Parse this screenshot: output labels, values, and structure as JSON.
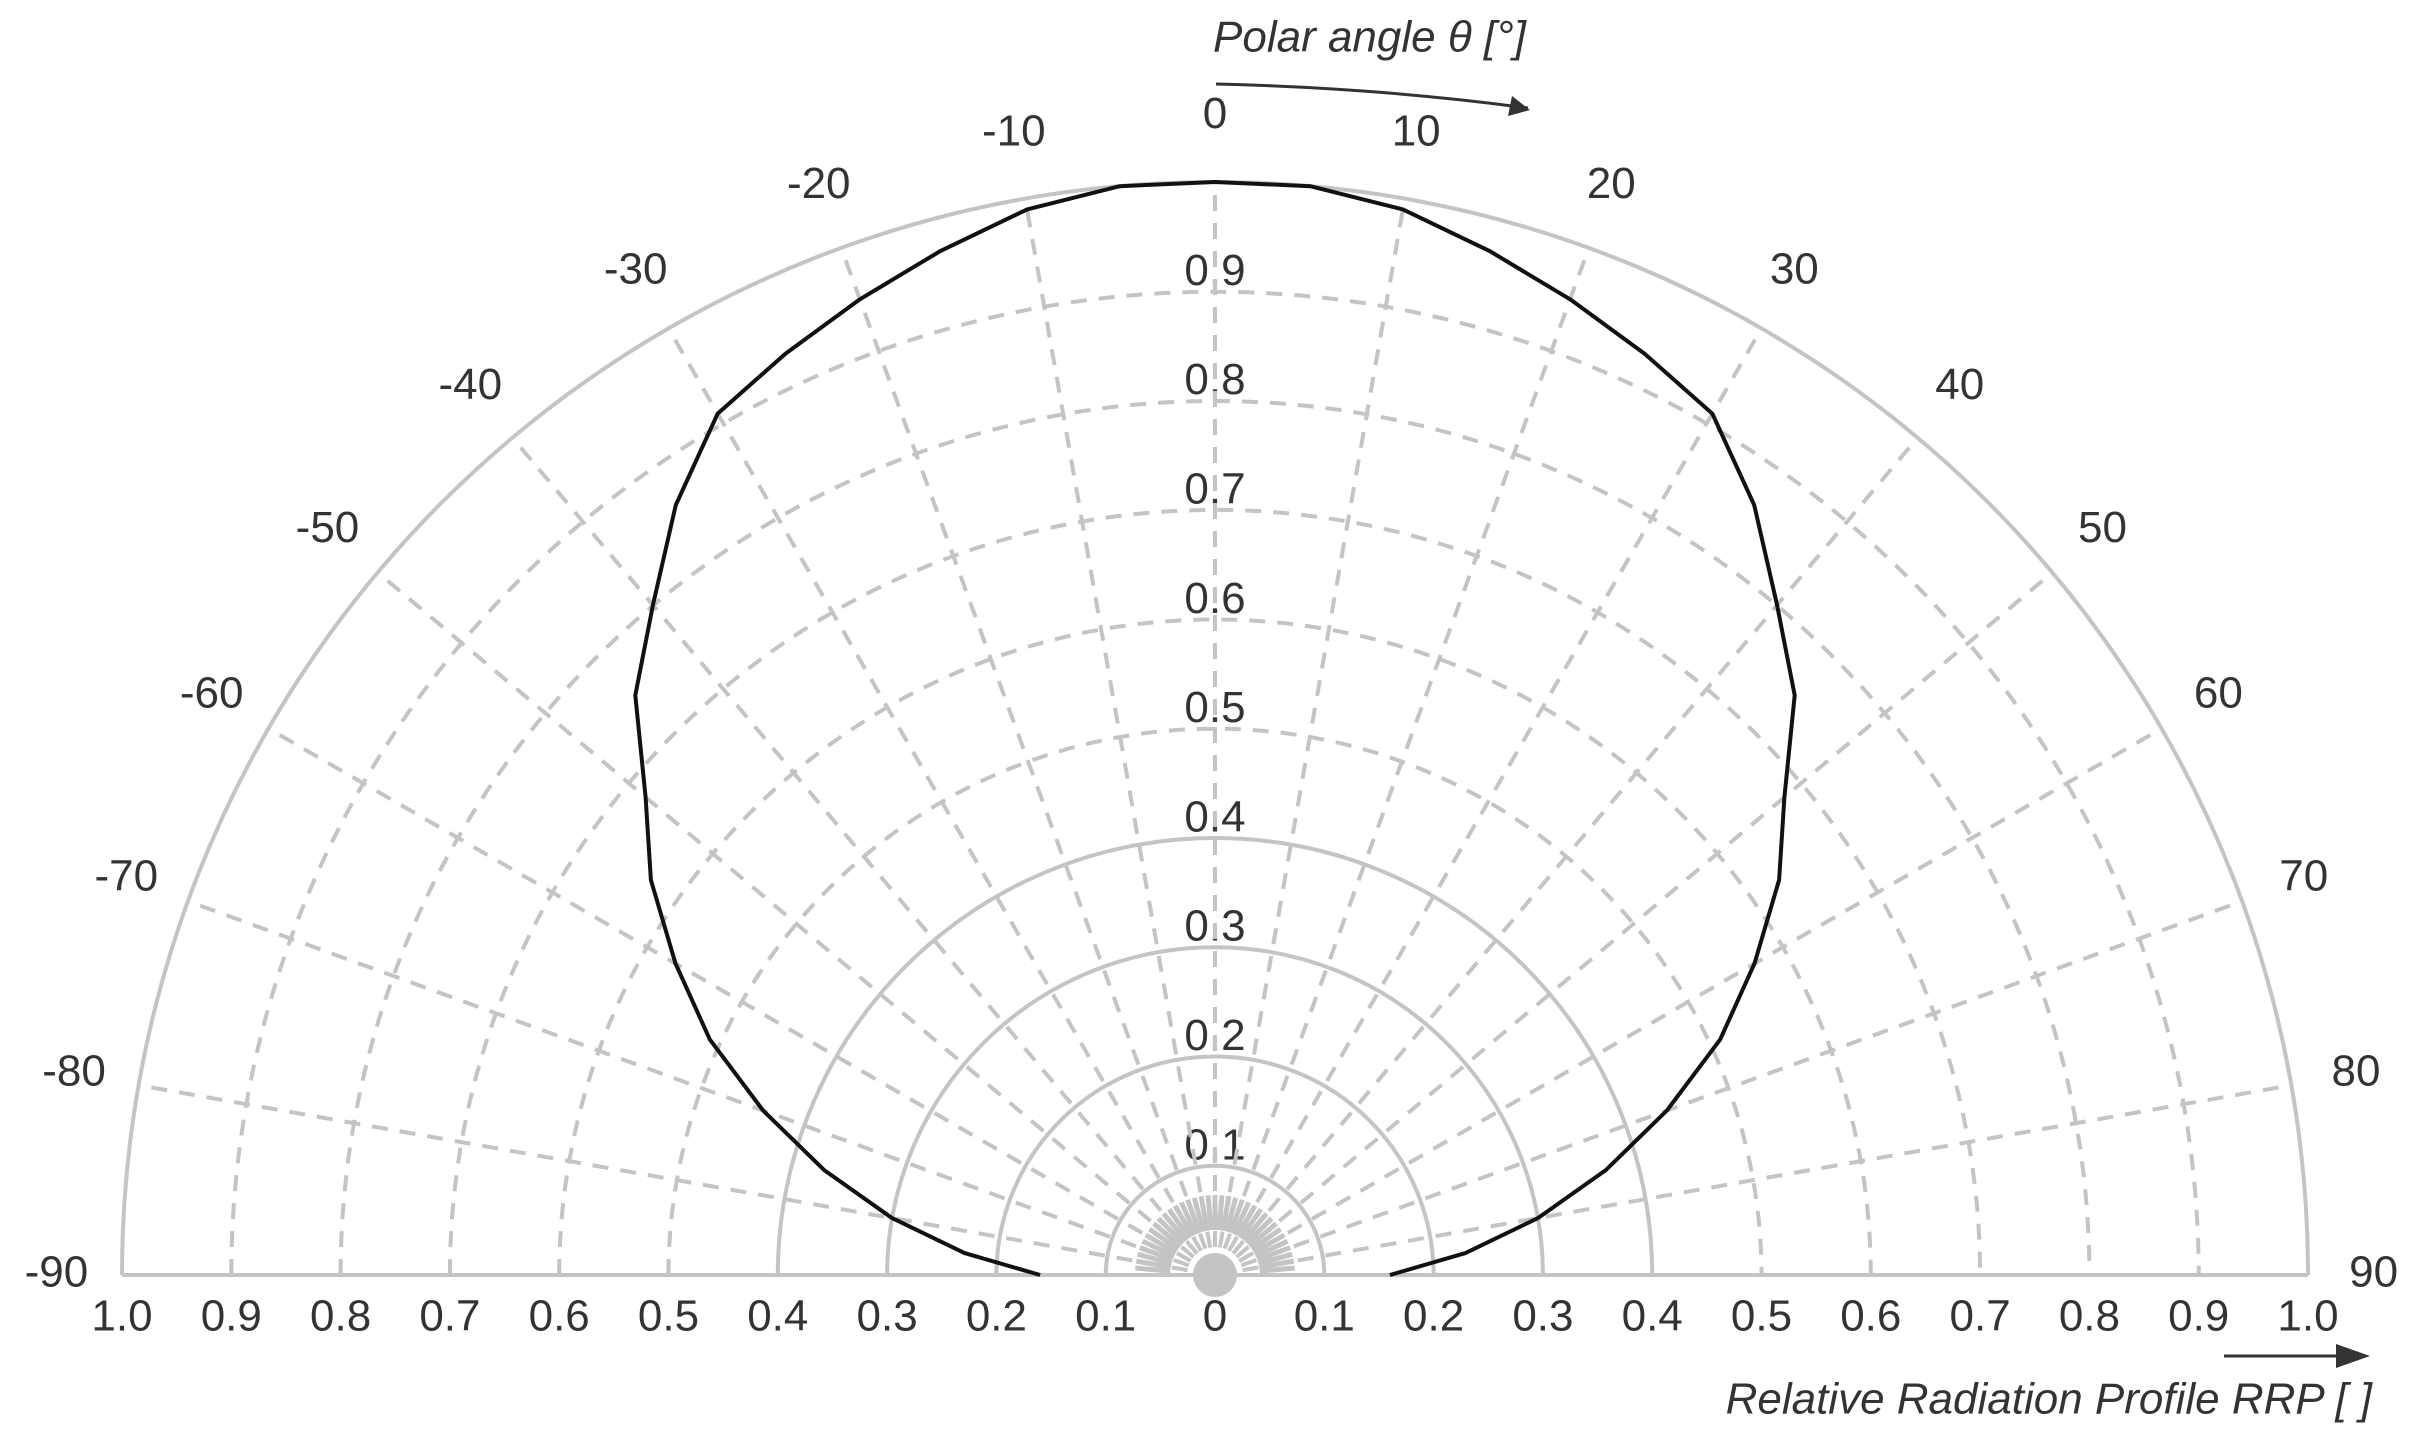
{
  "chart_data": {
    "type": "polar",
    "angle_label": "Polar angle θ [°]",
    "radius_label": "Relative Radiation Profile RRP [ ]",
    "thetalim": [
      -90,
      90
    ],
    "thetaticks": [
      -90,
      -80,
      -70,
      -60,
      -50,
      -40,
      -30,
      -20,
      -10,
      0,
      10,
      20,
      30,
      40,
      50,
      60,
      70,
      80,
      90
    ],
    "rlim": [
      0,
      1
    ],
    "rticks": [
      0,
      0.1,
      0.2,
      0.3,
      0.4,
      0.5,
      0.6,
      0.7,
      0.8,
      0.9,
      {
        "value": 1,
        "label": "1.0"
      }
    ],
    "grid": true,
    "grid_color": "#c4c4c4",
    "color": "#111111",
    "x": [
      -90,
      -85,
      -80,
      -75,
      -70,
      -65,
      -60,
      -55,
      -50,
      -45,
      -40,
      -35,
      -30,
      -25,
      -20,
      -15,
      -10,
      -5,
      0,
      5,
      10,
      15,
      20,
      25,
      30,
      35,
      40,
      45,
      50,
      55,
      60,
      65,
      70,
      75,
      80,
      85,
      90
    ],
    "values": [
      0.16,
      0.23,
      0.3,
      0.37,
      0.44,
      0.51,
      0.57,
      0.63,
      0.68,
      0.75,
      0.8,
      0.86,
      0.91,
      0.93,
      0.95,
      0.97,
      0.99,
      1.0,
      1.0,
      1.0,
      0.99,
      0.97,
      0.95,
      0.93,
      0.91,
      0.86,
      0.8,
      0.75,
      0.68,
      0.63,
      0.57,
      0.51,
      0.44,
      0.37,
      0.3,
      0.23,
      0.16
    ]
  }
}
